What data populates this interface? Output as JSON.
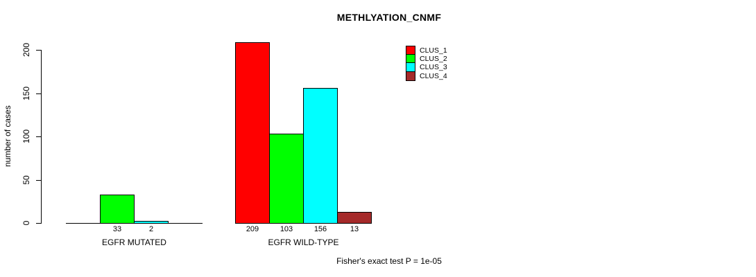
{
  "chart_data": {
    "type": "bar",
    "title": "METHLYATION_CNMF",
    "ylabel": "number of cases",
    "xlabel": "",
    "categories": [
      "EGFR MUTATED",
      "EGFR WILD-TYPE"
    ],
    "series": [
      {
        "name": "CLUS_1",
        "color": "#FF0000",
        "values": [
          0,
          209
        ]
      },
      {
        "name": "CLUS_2",
        "color": "#00FF00",
        "values": [
          33,
          103
        ]
      },
      {
        "name": "CLUS_3",
        "color": "#00FFFF",
        "values": [
          2,
          156
        ]
      },
      {
        "name": "CLUS_4",
        "color": "#A52A2A",
        "values": [
          0,
          13
        ]
      }
    ],
    "yticks": [
      0,
      50,
      100,
      150,
      200
    ],
    "ylim": [
      0,
      200
    ],
    "grid": false,
    "legend_position": "top-right",
    "value_labels": "shown under each nonzero bar",
    "annotation": "Fisher's exact test P = 1e-05"
  }
}
